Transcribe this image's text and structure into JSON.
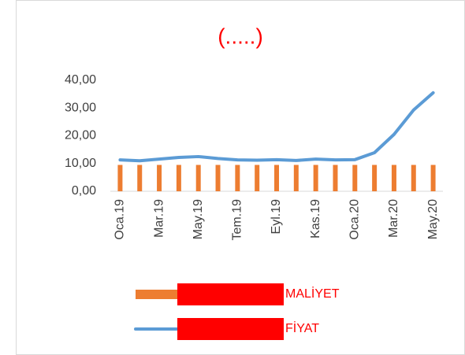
{
  "chart_data": {
    "type": "bar_line",
    "title": "(.....)",
    "categories": [
      "Oca.19",
      null,
      "Mar.19",
      null,
      "May.19",
      null,
      "Tem.19",
      null,
      "Eyl.19",
      null,
      "Kas.19",
      null,
      "Oca.20",
      null,
      "Mar.20",
      null,
      "May.20"
    ],
    "series": [
      {
        "name": "MALİYET",
        "color": "#ED7D31",
        "kind": "bar",
        "values": [
          9.5,
          9.5,
          9.5,
          9.5,
          9.5,
          9.5,
          9.5,
          9.5,
          9.5,
          9.5,
          9.5,
          9.5,
          9.5,
          9.5,
          9.5,
          9.5,
          9.5
        ]
      },
      {
        "name": "FİYAT",
        "color": "#5B9BD5",
        "kind": "line",
        "values": [
          11.3,
          11.0,
          11.6,
          12.2,
          12.5,
          11.8,
          11.3,
          11.2,
          11.4,
          11.1,
          11.6,
          11.3,
          11.4,
          13.9,
          20.5,
          29.3,
          35.5
        ]
      }
    ],
    "ylim": [
      0,
      40
    ],
    "yticks": [
      {
        "value": 0,
        "label": "0,00"
      },
      {
        "value": 10,
        "label": "10,00"
      },
      {
        "value": 20,
        "label": "20,00"
      },
      {
        "value": 30,
        "label": "30,00"
      },
      {
        "value": 40,
        "label": "40,00"
      }
    ],
    "grid": false,
    "legend": "bottom"
  }
}
